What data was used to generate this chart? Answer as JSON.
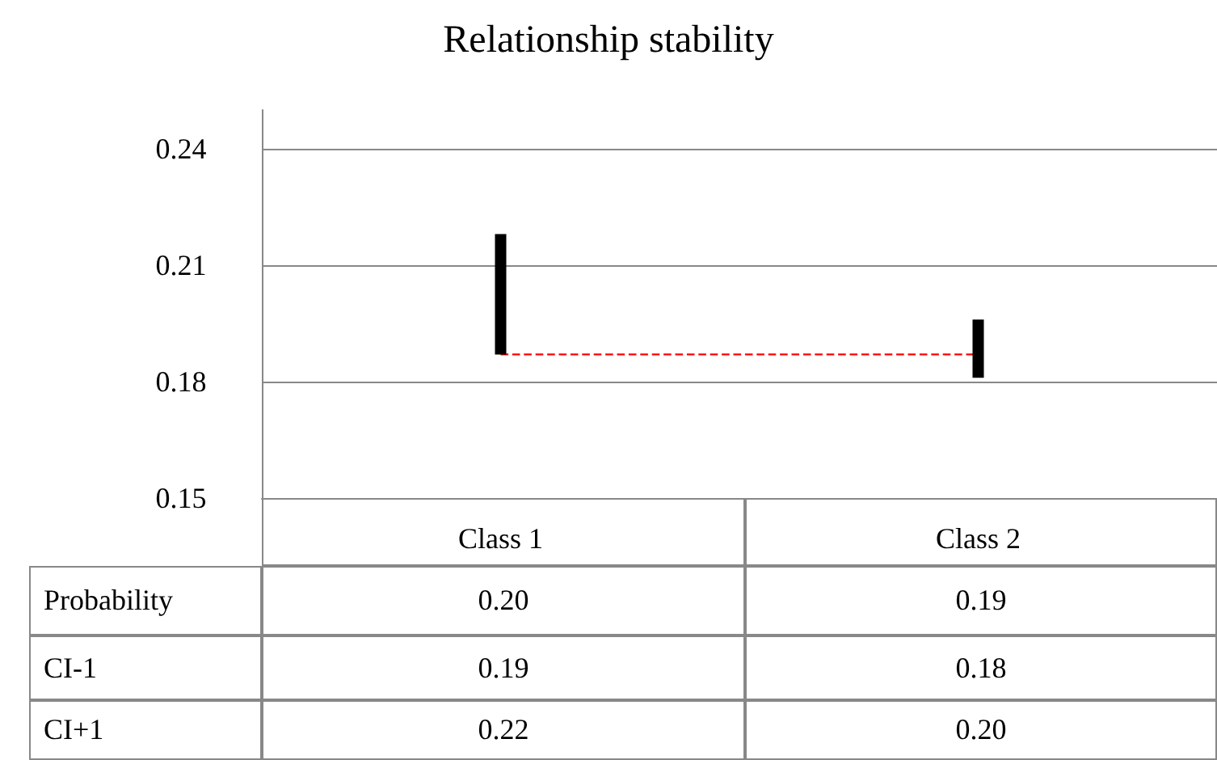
{
  "chart_data": [
    {
      "type": "bar",
      "title": "Relationship stability",
      "categories": [
        "Class 1",
        "Class 2"
      ],
      "series": [
        {
          "color": "#000000",
          "base": [
            0.187,
            0.181
          ],
          "values": [
            0.031,
            0.015
          ]
        }
      ],
      "ylim": [
        0.15,
        0.25
      ],
      "yticks": [
        0.15,
        0.18,
        0.21,
        0.24
      ],
      "grid": "y",
      "ref_lines": [
        {
          "axis": "y",
          "value": 0.187,
          "color": "#ff0000",
          "line_style": "dashed"
        }
      ]
    },
    {
      "type": "other",
      "annotations": [
        "Probability",
        "0.20",
        "0.19",
        "CI-1",
        "0.19",
        "0.18",
        "CI+1",
        "0.22",
        "0.20"
      ]
    }
  ]
}
